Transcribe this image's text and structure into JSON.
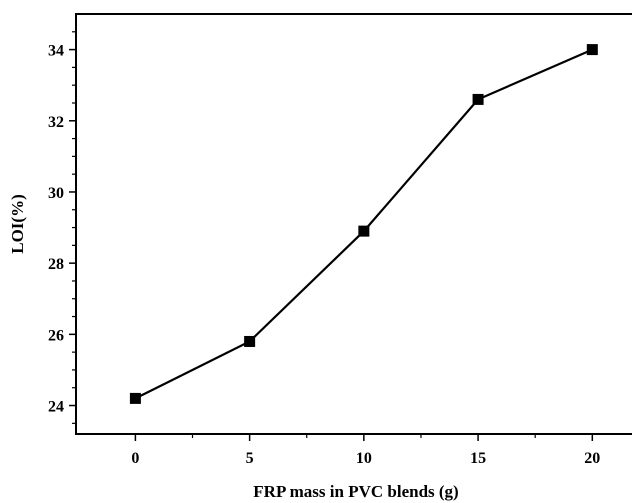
{
  "chart_data": {
    "type": "line",
    "title": "",
    "xlabel": "FRP mass in PVC blends (g)",
    "ylabel": "LOI(%)",
    "x": [
      0,
      5,
      10,
      15,
      20
    ],
    "series": [
      {
        "values": [
          24.2,
          25.8,
          28.9,
          32.6,
          34.0
        ]
      }
    ],
    "xlim": [
      -2.6,
      22
    ],
    "ylim": [
      23.2,
      35.0
    ],
    "xticks": [
      0,
      5,
      10,
      15,
      20
    ],
    "xtick_labels": [
      "0",
      "5",
      "10",
      "15",
      "20"
    ],
    "yticks": [
      24,
      26,
      28,
      30,
      32,
      34
    ],
    "ytick_labels": [
      "24",
      "26",
      "28",
      "30",
      "32",
      "34"
    ],
    "grid": false,
    "marker": "square",
    "color": "#000000"
  }
}
